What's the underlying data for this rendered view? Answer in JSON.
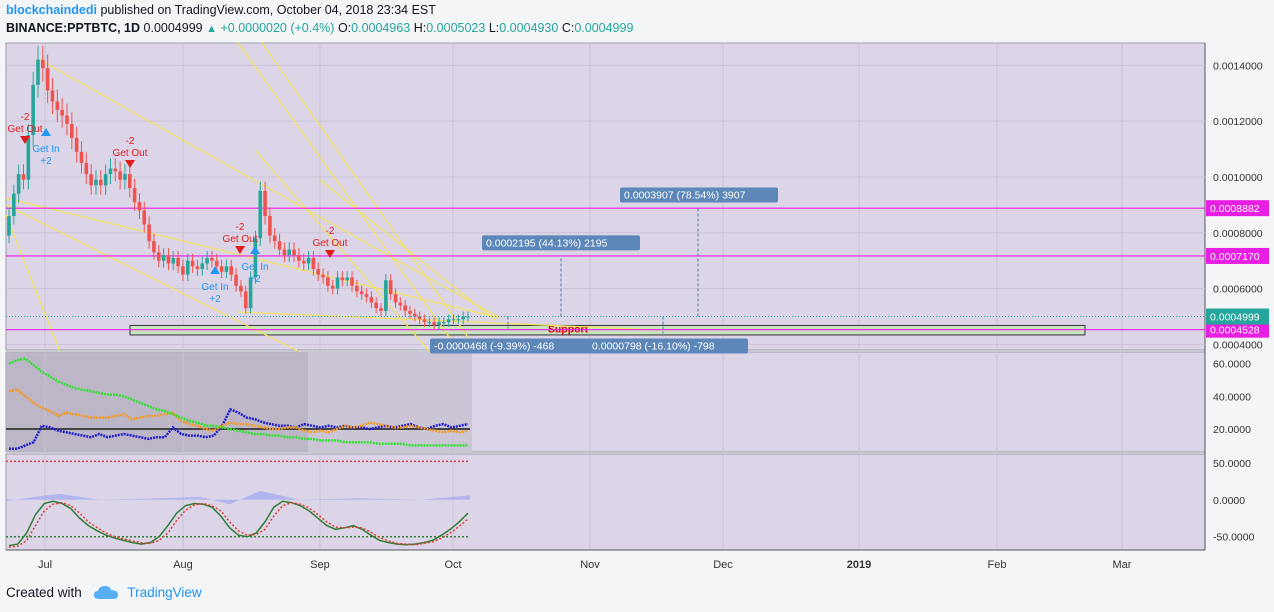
{
  "header": {
    "author": "blockchaindedi",
    "published_text": "published on TradingView.com, October 04, 2018 23:34 EST",
    "symbol": "BINANCE:PPTBTC, 1D",
    "last": "0.0004999",
    "change": "+0.0000020 (+0.4%)",
    "open_label": "O:",
    "open": "0.0004963",
    "high_label": "H:",
    "high": "0.0005023",
    "low_label": "L:",
    "low": "0.0004930",
    "close_label": "C:",
    "close": "0.0004999"
  },
  "footer": {
    "created_with": "Created with",
    "brand": "TradingView"
  },
  "chart_data": [
    {
      "type": "candlestick",
      "x_axis_labels": [
        "Jul",
        "Aug",
        "Sep",
        "Oct",
        "Nov",
        "Dec",
        "2019",
        "Feb",
        "Mar"
      ],
      "y_ticks": [
        "0.0014000",
        "0.0012000",
        "0.0010000",
        "0.0008000",
        "0.0006000",
        "0.0004000"
      ],
      "ylim": [
        0.00038,
        0.00148
      ],
      "close_start": 0.00079,
      "closes_approx": [
        0.00086,
        0.00094,
        0.00101,
        0.00099,
        0.00115,
        0.00133,
        0.00142,
        0.00139,
        0.00131,
        0.00127,
        0.00124,
        0.00122,
        0.00119,
        0.00114,
        0.00109,
        0.00105,
        0.00101,
        0.00097,
        0.00099,
        0.00097,
        0.00101,
        0.00103,
        0.00102,
        0.00099,
        0.00101,
        0.00096,
        0.00091,
        0.00088,
        0.00083,
        0.00077,
        0.00073,
        0.0007,
        0.00072,
        0.00069,
        0.00071,
        0.00068,
        0.00065,
        0.0007,
        0.00068,
        0.00067,
        0.00069,
        0.00071,
        0.0007,
        0.00068,
        0.00066,
        0.00068,
        0.00065,
        0.00061,
        0.00059,
        0.00053,
        0.00064,
        0.00078,
        0.00095,
        0.00086,
        0.00079,
        0.00077,
        0.00074,
        0.00072,
        0.00074,
        0.00072,
        0.0007,
        0.00069,
        0.00071,
        0.00067,
        0.00065,
        0.00064,
        0.00061,
        0.0006,
        0.00064,
        0.00063,
        0.00064,
        0.00061,
        0.00059,
        0.00058,
        0.00057,
        0.00055,
        0.00053,
        0.00052,
        0.00063,
        0.00058,
        0.00055,
        0.00054,
        0.00052,
        0.00051,
        0.0005,
        0.00049,
        0.00048,
        0.00048,
        0.00047,
        0.00048,
        0.00048,
        0.00049,
        0.00049,
        0.00049,
        0.0005,
        0.0005
      ],
      "horizontal_levels": [
        {
          "value": "0.0008882",
          "color": "#e91ee3"
        },
        {
          "value": "0.0007170",
          "color": "#e91ee3"
        },
        {
          "value": "0.0004528",
          "color": "#e91ee3"
        }
      ],
      "current_price_label": "0.0004999",
      "support_label": "Support",
      "measure_labels": [
        "0.0003907 (78.54%) 3907",
        "0.0002195 (44.13%) 2195",
        "-0.0000468 (-9.39%) -468",
        "0.0000798 (-16.10%) -798"
      ],
      "signals": [
        {
          "text": "Get Out",
          "value": "-2"
        },
        {
          "text": "Get In",
          "value": "+2"
        },
        {
          "text": "Get Out",
          "value": "-2"
        },
        {
          "text": "Get Out",
          "value": "-2"
        },
        {
          "text": "Get In",
          "value": "+2"
        },
        {
          "text": "Get In",
          "value": "+2"
        },
        {
          "text": "Get Out",
          "value": "-2"
        }
      ]
    },
    {
      "type": "line",
      "name": "DMI panel",
      "y_ticks": [
        "60.0000",
        "40.0000",
        "20.0000"
      ],
      "ylim": [
        6,
        67
      ],
      "baseline": 20,
      "series": [
        {
          "color": "#2020d0",
          "values": [
            8,
            8,
            10,
            12,
            22,
            21,
            19,
            18,
            17,
            16,
            15,
            17,
            15,
            16,
            17,
            16,
            15,
            14,
            15,
            15,
            21,
            17,
            16,
            16,
            15,
            16,
            22,
            32,
            30,
            27,
            26,
            24,
            23,
            22,
            22,
            21,
            23,
            22,
            21,
            22,
            21,
            22,
            21,
            21,
            20,
            21,
            22,
            21,
            22,
            23,
            21,
            20,
            22,
            23,
            21,
            22,
            23
          ]
        },
        {
          "color": "#f59a23",
          "values": [
            43,
            44,
            40,
            36,
            33,
            31,
            28,
            30,
            29,
            28,
            27,
            27,
            27,
            28,
            29,
            26,
            27,
            28,
            28,
            29,
            30,
            25,
            23,
            22,
            20,
            19,
            22,
            24,
            23,
            23,
            22,
            21,
            20,
            20,
            21,
            21,
            19,
            18,
            19,
            18,
            20,
            22,
            21,
            22,
            24,
            23,
            22,
            21,
            21,
            22,
            21,
            20,
            19,
            18,
            19,
            18,
            19
          ]
        },
        {
          "color": "#2fe22f",
          "values": [
            60,
            62,
            63,
            59,
            55,
            52,
            49,
            47,
            45,
            44,
            43,
            42,
            41,
            41,
            40,
            38,
            36,
            34,
            32,
            31,
            29,
            27,
            25,
            24,
            22,
            22,
            21,
            20,
            19,
            18,
            17,
            17,
            16,
            16,
            15,
            15,
            14,
            14,
            13,
            13,
            13,
            12,
            12,
            12,
            12,
            11,
            11,
            11,
            11,
            10,
            10,
            10,
            10,
            10,
            10,
            10,
            10
          ]
        }
      ]
    },
    {
      "type": "line",
      "name": "Oscillator panel",
      "y_ticks": [
        "50.0000",
        "0.0000",
        "-50.0000"
      ],
      "ylim": [
        -68,
        62
      ],
      "series": [
        {
          "color": "#2e7d32",
          "values": [
            -62,
            -60,
            -45,
            -20,
            -5,
            -2,
            -5,
            -12,
            -25,
            -35,
            -42,
            -48,
            -52,
            -55,
            -58,
            -60,
            -58,
            -50,
            -35,
            -18,
            -8,
            -5,
            -6,
            -10,
            -22,
            -38,
            -48,
            -50,
            -45,
            -30,
            -10,
            -2,
            -4,
            -8,
            -15,
            -25,
            -35,
            -40,
            -38,
            -35,
            -40,
            -48,
            -55,
            -58,
            -60,
            -61,
            -60,
            -58,
            -55,
            -48,
            -40,
            -30,
            -18
          ]
        },
        {
          "color": "#e53935",
          "values": [
            -64,
            -63,
            -55,
            -35,
            -15,
            -6,
            -4,
            -8,
            -18,
            -30,
            -38,
            -45,
            -50,
            -53,
            -56,
            -58,
            -59,
            -55,
            -45,
            -28,
            -14,
            -7,
            -5,
            -8,
            -15,
            -30,
            -42,
            -48,
            -47,
            -40,
            -22,
            -8,
            -4,
            -6,
            -11,
            -20,
            -30,
            -37,
            -38,
            -37,
            -38,
            -44,
            -51,
            -56,
            -59,
            -60,
            -61,
            -59,
            -57,
            -52,
            -45,
            -36,
            -26
          ]
        }
      ]
    }
  ]
}
